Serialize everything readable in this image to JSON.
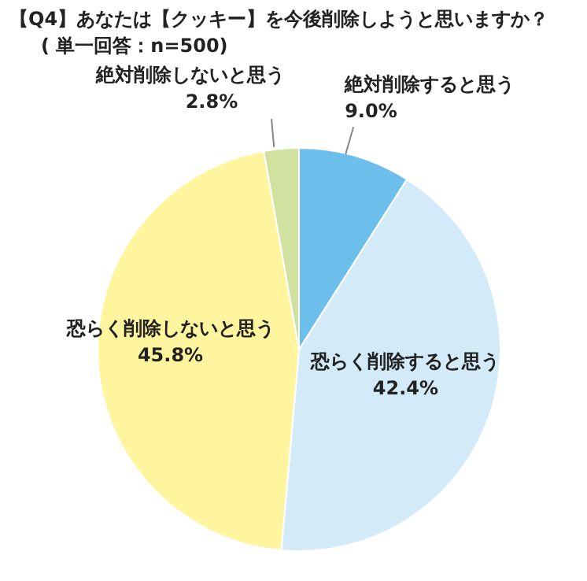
{
  "chart_data": {
    "type": "pie",
    "title": "【Q4】あなたは【クッキー】を今後削除しようと思いますか？",
    "subtitle": "( 単一回答：n=500)",
    "categories": [
      "絶対削除すると思う",
      "恐らく削除すると思う",
      "恐らく削除しないと思う",
      "絶対削除しないと思う"
    ],
    "values": [
      9.0,
      42.4,
      45.8,
      2.8
    ],
    "colors": [
      "#6cbfeb",
      "#d3ebf8",
      "#fff59f",
      "#d0e1a0"
    ],
    "value_labels": [
      "9.0%",
      "42.4%",
      "45.8%",
      "2.8%"
    ],
    "legend": false
  }
}
